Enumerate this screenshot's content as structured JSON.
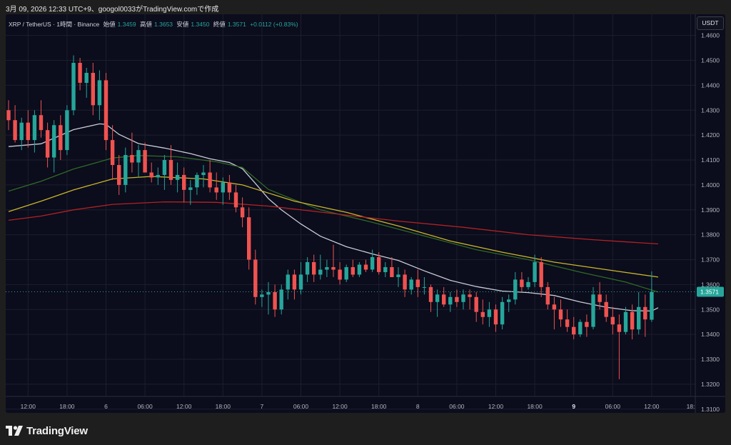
{
  "header": {
    "caption": "3月 09, 2026 12:33 UTC+9、googol0033がTradingView.comで作成"
  },
  "legend": {
    "symbol": "XRP / TetherUS · 1時間 · Binance",
    "open_label": "始値",
    "open": "1.3459",
    "high_label": "高値",
    "high": "1.3653",
    "low_label": "安値",
    "low": "1.3450",
    "close_label": "終値",
    "close": "1.3571",
    "change": "+0.0112 (+0.83%)"
  },
  "currency_button": "USDT",
  "footer": {
    "logo_icon": "tradingview-logo-icon",
    "brand": "TradingView"
  },
  "chart_data": {
    "type": "candlestick",
    "price_scale": {
      "ylim": [
        1.3085,
        1.4685
      ],
      "ticks": [
        "1.4600",
        "1.4500",
        "1.4400",
        "1.4300",
        "1.4200",
        "1.4100",
        "1.4000",
        "1.3900",
        "1.3800",
        "1.3700",
        "1.3600",
        "1.3500",
        "1.3400",
        "1.3300",
        "1.3200",
        "1.3100"
      ],
      "current_price_label": "1.3571",
      "current_price_color": "#26a69a"
    },
    "time_axis": {
      "labels": [
        {
          "label": "12:00",
          "bar": 3,
          "bold": false
        },
        {
          "label": "18:00",
          "bar": 9,
          "bold": false
        },
        {
          "label": "6",
          "bar": 15,
          "bold": false
        },
        {
          "label": "06:00",
          "bar": 21,
          "bold": false
        },
        {
          "label": "12:00",
          "bar": 27,
          "bold": false
        },
        {
          "label": "18:00",
          "bar": 33,
          "bold": false
        },
        {
          "label": "7",
          "bar": 39,
          "bold": false
        },
        {
          "label": "06:00",
          "bar": 45,
          "bold": false
        },
        {
          "label": "12:00",
          "bar": 51,
          "bold": false
        },
        {
          "label": "18:00",
          "bar": 57,
          "bold": false
        },
        {
          "label": "8",
          "bar": 63,
          "bold": false
        },
        {
          "label": "06:00",
          "bar": 69,
          "bold": false
        },
        {
          "label": "12:00",
          "bar": 75,
          "bold": false
        },
        {
          "label": "18:00",
          "bar": 81,
          "bold": false
        },
        {
          "label": "9",
          "bar": 87,
          "bold": true
        },
        {
          "label": "06:00",
          "bar": 93,
          "bold": false
        },
        {
          "label": "12:00",
          "bar": 99,
          "bold": false
        },
        {
          "label": "18:",
          "bar": 105,
          "bold": false
        }
      ]
    },
    "colors": {
      "up": "#26a69a",
      "down": "#ef5350",
      "grid": "#1c1e2e"
    },
    "ohlc": [
      [
        1.43,
        1.434,
        1.422,
        1.426
      ],
      [
        1.426,
        1.432,
        1.417,
        1.418
      ],
      [
        1.418,
        1.427,
        1.414,
        1.425
      ],
      [
        1.425,
        1.43,
        1.415,
        1.418
      ],
      [
        1.418,
        1.43,
        1.413,
        1.428
      ],
      [
        1.428,
        1.434,
        1.419,
        1.422
      ],
      [
        1.422,
        1.425,
        1.407,
        1.411
      ],
      [
        1.411,
        1.426,
        1.405,
        1.424
      ],
      [
        1.424,
        1.428,
        1.41,
        1.414
      ],
      [
        1.414,
        1.432,
        1.412,
        1.43
      ],
      [
        1.43,
        1.452,
        1.428,
        1.449
      ],
      [
        1.449,
        1.451,
        1.438,
        1.441
      ],
      [
        1.441,
        1.447,
        1.435,
        1.445
      ],
      [
        1.445,
        1.449,
        1.428,
        1.432
      ],
      [
        1.432,
        1.446,
        1.426,
        1.442
      ],
      [
        1.442,
        1.445,
        1.414,
        1.418
      ],
      [
        1.418,
        1.424,
        1.402,
        1.408
      ],
      [
        1.408,
        1.412,
        1.396,
        1.4
      ],
      [
        1.4,
        1.415,
        1.397,
        1.412
      ],
      [
        1.412,
        1.421,
        1.405,
        1.409
      ],
      [
        1.409,
        1.416,
        1.403,
        1.414
      ],
      [
        1.414,
        1.417,
        1.405,
        1.405
      ],
      [
        1.405,
        1.409,
        1.401,
        1.403
      ],
      [
        1.403,
        1.407,
        1.4,
        1.404
      ],
      [
        1.404,
        1.412,
        1.398,
        1.41
      ],
      [
        1.41,
        1.416,
        1.4,
        1.402
      ],
      [
        1.402,
        1.409,
        1.397,
        1.404
      ],
      [
        1.404,
        1.407,
        1.393,
        1.398
      ],
      [
        1.398,
        1.402,
        1.392,
        1.399
      ],
      [
        1.399,
        1.405,
        1.396,
        1.404
      ],
      [
        1.404,
        1.408,
        1.399,
        1.405
      ],
      [
        1.405,
        1.41,
        1.397,
        1.399
      ],
      [
        1.399,
        1.405,
        1.394,
        1.397
      ],
      [
        1.397,
        1.403,
        1.392,
        1.401
      ],
      [
        1.401,
        1.404,
        1.394,
        1.397
      ],
      [
        1.397,
        1.4,
        1.389,
        1.391
      ],
      [
        1.391,
        1.395,
        1.383,
        1.387
      ],
      [
        1.387,
        1.391,
        1.366,
        1.37
      ],
      [
        1.37,
        1.374,
        1.352,
        1.355
      ],
      [
        1.355,
        1.358,
        1.351,
        1.356
      ],
      [
        1.356,
        1.361,
        1.348,
        1.357
      ],
      [
        1.357,
        1.36,
        1.347,
        1.35
      ],
      [
        1.35,
        1.36,
        1.348,
        1.358
      ],
      [
        1.358,
        1.366,
        1.354,
        1.364
      ],
      [
        1.364,
        1.366,
        1.354,
        1.358
      ],
      [
        1.358,
        1.369,
        1.356,
        1.364
      ],
      [
        1.364,
        1.371,
        1.361,
        1.369
      ],
      [
        1.369,
        1.372,
        1.361,
        1.364
      ],
      [
        1.364,
        1.372,
        1.362,
        1.366
      ],
      [
        1.366,
        1.37,
        1.363,
        1.367
      ],
      [
        1.367,
        1.376,
        1.363,
        1.366
      ],
      [
        1.366,
        1.369,
        1.36,
        1.362
      ],
      [
        1.362,
        1.368,
        1.361,
        1.367
      ],
      [
        1.367,
        1.37,
        1.363,
        1.364
      ],
      [
        1.364,
        1.369,
        1.363,
        1.368
      ],
      [
        1.368,
        1.37,
        1.365,
        1.366
      ],
      [
        1.366,
        1.374,
        1.365,
        1.371
      ],
      [
        1.371,
        1.373,
        1.364,
        1.365
      ],
      [
        1.365,
        1.369,
        1.363,
        1.367
      ],
      [
        1.367,
        1.371,
        1.363,
        1.363
      ],
      [
        1.363,
        1.367,
        1.359,
        1.364
      ],
      [
        1.364,
        1.366,
        1.355,
        1.358
      ],
      [
        1.358,
        1.363,
        1.356,
        1.362
      ],
      [
        1.362,
        1.366,
        1.355,
        1.359
      ],
      [
        1.359,
        1.363,
        1.356,
        1.359
      ],
      [
        1.359,
        1.36,
        1.349,
        1.353
      ],
      [
        1.353,
        1.358,
        1.347,
        1.356
      ],
      [
        1.356,
        1.359,
        1.351,
        1.352
      ],
      [
        1.352,
        1.357,
        1.349,
        1.355
      ],
      [
        1.355,
        1.358,
        1.351,
        1.353
      ],
      [
        1.353,
        1.358,
        1.35,
        1.356
      ],
      [
        1.356,
        1.358,
        1.35,
        1.355
      ],
      [
        1.355,
        1.357,
        1.345,
        1.349
      ],
      [
        1.349,
        1.354,
        1.344,
        1.347
      ],
      [
        1.347,
        1.353,
        1.343,
        1.35
      ],
      [
        1.35,
        1.352,
        1.341,
        1.344
      ],
      [
        1.344,
        1.355,
        1.342,
        1.353
      ],
      [
        1.353,
        1.356,
        1.349,
        1.354
      ],
      [
        1.354,
        1.365,
        1.352,
        1.362
      ],
      [
        1.362,
        1.365,
        1.357,
        1.359
      ],
      [
        1.359,
        1.363,
        1.358,
        1.361
      ],
      [
        1.361,
        1.372,
        1.359,
        1.369
      ],
      [
        1.369,
        1.371,
        1.355,
        1.359
      ],
      [
        1.359,
        1.361,
        1.35,
        1.352
      ],
      [
        1.352,
        1.355,
        1.342,
        1.35
      ],
      [
        1.35,
        1.354,
        1.343,
        1.346
      ],
      [
        1.346,
        1.35,
        1.341,
        1.343
      ],
      [
        1.343,
        1.347,
        1.338,
        1.34
      ],
      [
        1.34,
        1.346,
        1.339,
        1.345
      ],
      [
        1.345,
        1.348,
        1.339,
        1.343
      ],
      [
        1.343,
        1.359,
        1.342,
        1.356
      ],
      [
        1.356,
        1.361,
        1.35,
        1.353
      ],
      [
        1.353,
        1.356,
        1.345,
        1.347
      ],
      [
        1.347,
        1.351,
        1.34,
        1.344
      ],
      [
        1.344,
        1.348,
        1.322,
        1.341
      ],
      [
        1.341,
        1.351,
        1.34,
        1.349
      ],
      [
        1.349,
        1.352,
        1.338,
        1.342
      ],
      [
        1.342,
        1.357,
        1.34,
        1.351
      ],
      [
        1.351,
        1.356,
        1.339,
        1.346
      ],
      [
        1.3459,
        1.3653,
        1.345,
        1.3571
      ]
    ],
    "moving_averages": [
      {
        "color": "#c9cbd6",
        "values": [
          [
            0,
            1.4154
          ],
          [
            5,
            1.4165
          ],
          [
            10,
            1.4222
          ],
          [
            14,
            1.4245
          ],
          [
            15,
            1.4243
          ],
          [
            17,
            1.4203
          ],
          [
            20,
            1.4166
          ],
          [
            24,
            1.4148
          ],
          [
            28,
            1.4126
          ],
          [
            31,
            1.4105
          ],
          [
            34,
            1.409
          ],
          [
            36,
            1.4065
          ],
          [
            38,
            1.4006
          ],
          [
            40,
            1.3945
          ],
          [
            42,
            1.39
          ],
          [
            45,
            1.3843
          ],
          [
            48,
            1.3794
          ],
          [
            52,
            1.3752
          ],
          [
            56,
            1.3723
          ],
          [
            60,
            1.3697
          ],
          [
            64,
            1.3655
          ],
          [
            68,
            1.3617
          ],
          [
            72,
            1.3592
          ],
          [
            76,
            1.3574
          ],
          [
            80,
            1.3568
          ],
          [
            84,
            1.3556
          ],
          [
            88,
            1.353
          ],
          [
            92,
            1.3509
          ],
          [
            96,
            1.3495
          ],
          [
            99,
            1.3494
          ],
          [
            100,
            1.3507
          ]
        ]
      },
      {
        "color": "#2f6a25",
        "values": [
          [
            0,
            1.3975
          ],
          [
            5,
            1.4015
          ],
          [
            10,
            1.4064
          ],
          [
            14,
            1.4093
          ],
          [
            16,
            1.4108
          ],
          [
            20,
            1.4118
          ],
          [
            26,
            1.4113
          ],
          [
            32,
            1.4093
          ],
          [
            36,
            1.407
          ],
          [
            40,
            1.3982
          ],
          [
            44,
            1.394
          ],
          [
            48,
            1.39
          ],
          [
            56,
            1.385
          ],
          [
            64,
            1.3795
          ],
          [
            72,
            1.374
          ],
          [
            80,
            1.37
          ],
          [
            88,
            1.365
          ],
          [
            95,
            1.361
          ],
          [
            100,
            1.357
          ]
        ]
      },
      {
        "color": "#c9b52a",
        "values": [
          [
            0,
            1.3893
          ],
          [
            5,
            1.3935
          ],
          [
            10,
            1.398
          ],
          [
            16,
            1.4024
          ],
          [
            22,
            1.4034
          ],
          [
            30,
            1.4024
          ],
          [
            36,
            1.4
          ],
          [
            44,
            1.3935
          ],
          [
            52,
            1.389
          ],
          [
            60,
            1.3835
          ],
          [
            68,
            1.3775
          ],
          [
            76,
            1.373
          ],
          [
            84,
            1.369
          ],
          [
            92,
            1.366
          ],
          [
            100,
            1.363
          ]
        ]
      },
      {
        "color": "#b22222",
        "values": [
          [
            0,
            1.3858
          ],
          [
            5,
            1.3875
          ],
          [
            10,
            1.39
          ],
          [
            16,
            1.3922
          ],
          [
            24,
            1.3932
          ],
          [
            32,
            1.393
          ],
          [
            40,
            1.3915
          ],
          [
            50,
            1.3885
          ],
          [
            60,
            1.3855
          ],
          [
            70,
            1.383
          ],
          [
            80,
            1.38
          ],
          [
            90,
            1.378
          ],
          [
            100,
            1.3763
          ]
        ]
      }
    ]
  }
}
